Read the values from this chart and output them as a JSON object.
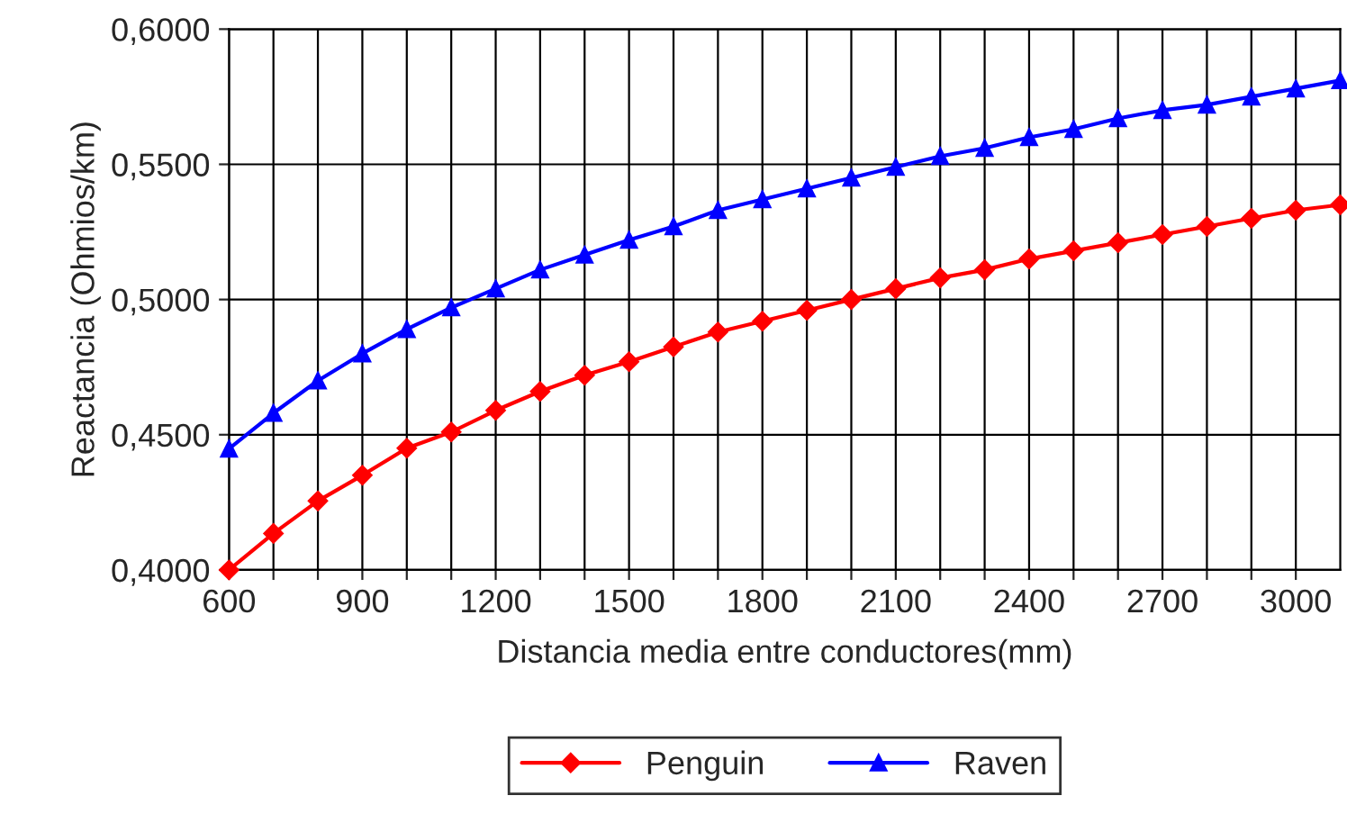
{
  "chart_data": {
    "type": "line",
    "xlabel": "Distancia media entre conductores(mm)",
    "ylabel": "Reactancia (Ohmios/km)",
    "x": [
      600,
      700,
      800,
      900,
      1000,
      1100,
      1200,
      1300,
      1400,
      1500,
      1600,
      1700,
      1800,
      1900,
      2000,
      2100,
      2200,
      2300,
      2400,
      2500,
      2600,
      2700,
      2800,
      2900,
      3000,
      3100
    ],
    "series": [
      {
        "name": "Penguin",
        "color": "#ff0000",
        "marker": "diamond",
        "values": [
          0.4,
          0.4135,
          0.4255,
          0.435,
          0.445,
          0.451,
          0.459,
          0.466,
          0.472,
          0.477,
          0.4825,
          0.488,
          0.492,
          0.496,
          0.5,
          0.504,
          0.508,
          0.511,
          0.515,
          0.518,
          0.521,
          0.524,
          0.527,
          0.53,
          0.533,
          0.535
        ]
      },
      {
        "name": "Raven",
        "color": "#0000ff",
        "marker": "triangle",
        "values": [
          0.4448,
          0.458,
          0.47,
          0.48,
          0.489,
          0.497,
          0.504,
          0.511,
          0.5165,
          0.522,
          0.527,
          0.533,
          0.537,
          0.541,
          0.545,
          0.549,
          0.553,
          0.556,
          0.56,
          0.563,
          0.567,
          0.57,
          0.572,
          0.575,
          0.578,
          0.581
        ]
      }
    ],
    "xlim": [
      600,
      3100
    ],
    "xticks": [
      600,
      {
        "value": 700,
        "label": null
      },
      {
        "value": 800,
        "label": null
      },
      900,
      {
        "value": 1000,
        "label": null
      },
      {
        "value": 1100,
        "label": null
      },
      1200,
      {
        "value": 1300,
        "label": null
      },
      {
        "value": 1400,
        "label": null
      },
      1500,
      {
        "value": 1600,
        "label": null
      },
      {
        "value": 1700,
        "label": null
      },
      1800,
      {
        "value": 1900,
        "label": null
      },
      {
        "value": 2000,
        "label": null
      },
      2100,
      {
        "value": 2200,
        "label": null
      },
      {
        "value": 2300,
        "label": null
      },
      2400,
      {
        "value": 2500,
        "label": null
      },
      {
        "value": 2600,
        "label": null
      },
      2700,
      {
        "value": 2800,
        "label": null
      },
      {
        "value": 2900,
        "label": null
      },
      3000
    ],
    "ylim": [
      0.4,
      0.6
    ],
    "yticks": [
      {
        "value": 0.4,
        "label": "0,4000"
      },
      {
        "value": 0.45,
        "label": "0,4500"
      },
      {
        "value": 0.5,
        "label": "0,5000"
      },
      {
        "value": 0.55,
        "label": "0,5500"
      },
      {
        "value": 0.6,
        "label": "0,6000"
      }
    ],
    "grid": true,
    "legend": "bottom",
    "line_style": "solid"
  }
}
